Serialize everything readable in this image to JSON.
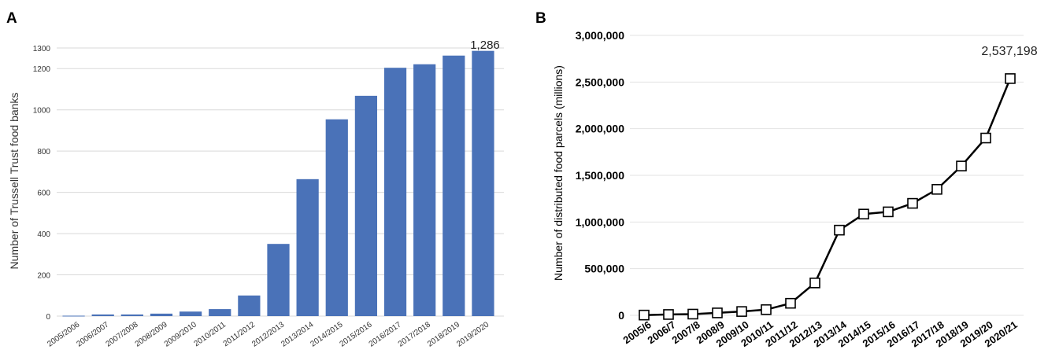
{
  "panels": {
    "a_letter": "A",
    "b_letter": "B"
  },
  "chart_data": [
    {
      "type": "bar",
      "ylabel": "Number of Trussell Trust food banks",
      "xlabel": "",
      "ylim": [
        0,
        1300
      ],
      "yticks": [
        0,
        200,
        400,
        600,
        800,
        1000,
        1200,
        1300
      ],
      "grid": true,
      "bar_color": "#4a72b8",
      "categories": [
        "2005/2006",
        "2006/2007",
        "2007/2008",
        "2008/2009",
        "2009/2010",
        "2010/2011",
        "2011/2012",
        "2012/2013",
        "2013/2014",
        "2014/2015",
        "2015/2016",
        "2016/2017",
        "2017/2018",
        "2018/2019",
        "2019/2020"
      ],
      "values": [
        2,
        8,
        8,
        12,
        22,
        34,
        100,
        350,
        664,
        954,
        1068,
        1204,
        1221,
        1263,
        1286
      ],
      "annotation": "1,286"
    },
    {
      "type": "line",
      "ylabel": "Number of distributed food parcels (millions)",
      "xlabel": "",
      "ylim": [
        0,
        3000000
      ],
      "yticks": [
        "0",
        "500,000",
        "1,000,000",
        "1,500,000",
        "2,000,000",
        "2,500,000",
        "3,000,000"
      ],
      "grid": true,
      "marker": "open-square",
      "line_color": "#000000",
      "x": [
        "2005/6",
        "2006/7",
        "2007/8",
        "2008/9",
        "2009/10",
        "2010/11",
        "2011/12",
        "2012/13",
        "2013/14",
        "2014/15",
        "2015/16",
        "2016/17",
        "2017/18",
        "2018/19",
        "2019/20",
        "2020/21"
      ],
      "y": [
        2814,
        9000,
        13000,
        26000,
        41000,
        61000,
        129000,
        347000,
        913000,
        1085000,
        1109000,
        1200000,
        1350000,
        1600000,
        1900000,
        2537198
      ],
      "annotation": "2,537,198"
    }
  ]
}
